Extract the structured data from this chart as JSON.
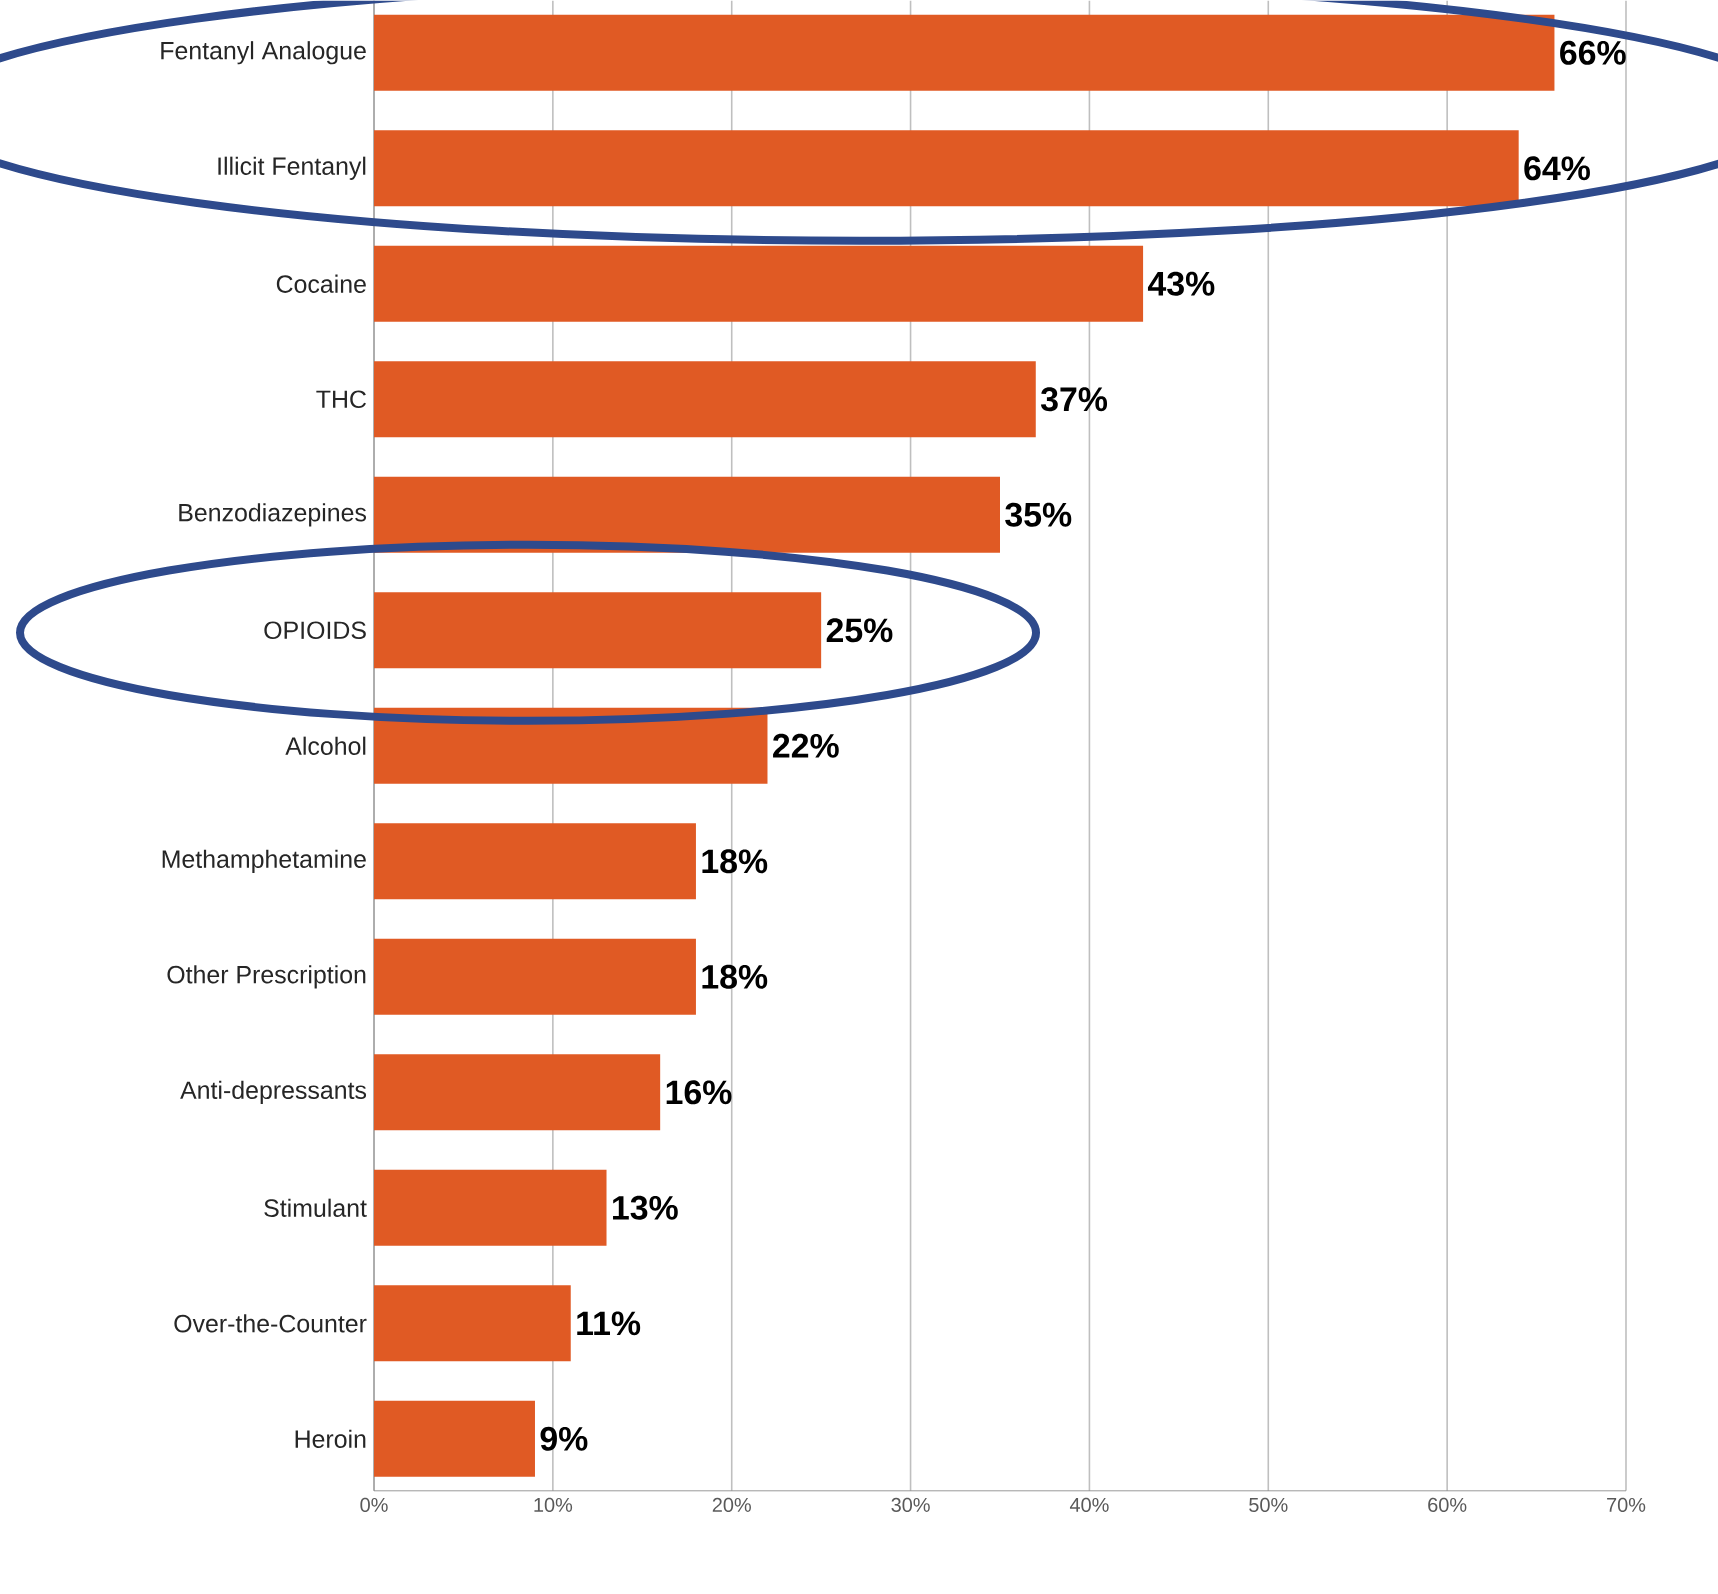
{
  "chart_data": {
    "type": "bar",
    "orientation": "horizontal",
    "categories": [
      "Fentanyl Analogue",
      "Illicit Fentanyl",
      "Cocaine",
      "THC",
      "Benzodiazepines",
      "OPIOIDS",
      "Alcohol",
      "Methamphetamine",
      "Other Prescription",
      "Anti-depressants",
      "Stimulant",
      "Over-the-Counter",
      "Heroin"
    ],
    "values": [
      66,
      64,
      43,
      37,
      35,
      25,
      22,
      18,
      18,
      16,
      13,
      11,
      9
    ],
    "value_labels": [
      "66%",
      "64%",
      "43%",
      "37%",
      "35%",
      "25%",
      "22%",
      "18%",
      "18%",
      "16%",
      "13%",
      "11%",
      "9%"
    ],
    "color": "#e05a24",
    "xlim": [
      0,
      70
    ],
    "xticks": [
      {
        "value": 0,
        "label": "0%"
      },
      {
        "value": 10,
        "label": "10%"
      },
      {
        "value": 20,
        "label": "20%"
      },
      {
        "value": 30,
        "label": "30%"
      },
      {
        "value": 40,
        "label": "40%"
      },
      {
        "value": 50,
        "label": "50%"
      },
      {
        "value": 60,
        "label": "60%"
      },
      {
        "value": 70,
        "label": "70%"
      }
    ],
    "grid": "x"
  }
}
